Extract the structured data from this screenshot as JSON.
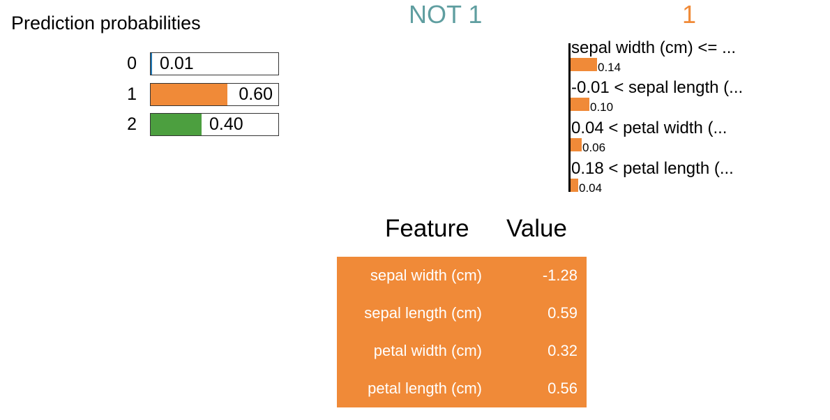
{
  "chart_data": [
    {
      "type": "bar",
      "title": "Prediction probabilities",
      "categories": [
        "0",
        "1",
        "2"
      ],
      "values": [
        0.01,
        0.6,
        0.4
      ],
      "value_labels": [
        "0.01",
        "0.60",
        "0.40"
      ],
      "colors": [
        "#1f77b4",
        "#f08a38",
        "#4c9f3f"
      ],
      "xlim": [
        0,
        1
      ]
    },
    {
      "type": "bar",
      "orientation": "horizontal",
      "negative_class": "NOT 1",
      "positive_class": "1",
      "categories": [
        "sepal width (cm) <= ...",
        "-0.01 < sepal length (...",
        "0.04 < petal width (...",
        "0.18 < petal length (..."
      ],
      "values": [
        0.14,
        0.1,
        0.06,
        0.04
      ],
      "value_labels": [
        "0.14",
        "0.10",
        "0.06",
        "0.04"
      ],
      "colors": {
        "positive": "#f08a38",
        "negative": "#5f9ea0"
      }
    },
    {
      "type": "table",
      "columns": [
        "Feature",
        "Value"
      ],
      "rows": [
        [
          "sepal width (cm)",
          "-1.28"
        ],
        [
          "sepal length (cm)",
          "0.59"
        ],
        [
          "petal width (cm)",
          "0.32"
        ],
        [
          "petal length (cm)",
          "0.56"
        ]
      ],
      "highlight_color": "#f08a38"
    }
  ]
}
